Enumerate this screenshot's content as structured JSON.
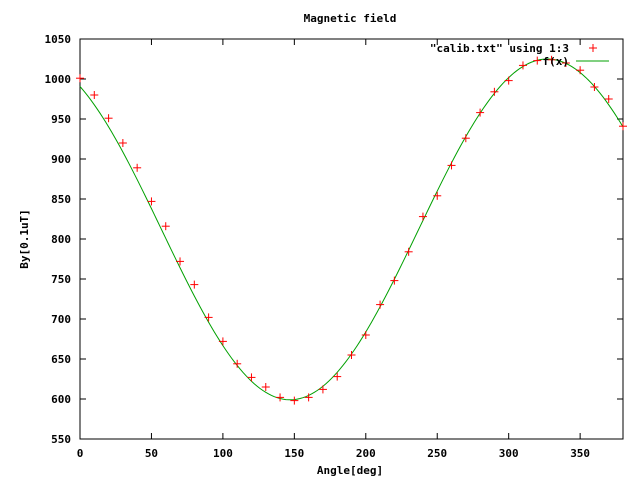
{
  "chart_data": {
    "type": "scatter",
    "title": "Magnetic field",
    "xlabel": "Angle[deg]",
    "ylabel": "By[0.1uT]",
    "xlim": [
      0,
      380
    ],
    "ylim": [
      550,
      1050
    ],
    "xticks": [
      0,
      50,
      100,
      150,
      200,
      250,
      300,
      350
    ],
    "yticks": [
      550,
      600,
      650,
      700,
      750,
      800,
      850,
      900,
      950,
      1000,
      1050
    ],
    "grid": false,
    "legend_position": "top-right",
    "series": [
      {
        "name": "\"calib.txt\" using 1:3",
        "kind": "points",
        "marker": "plus",
        "color": "#ff0000",
        "x": [
          0,
          10,
          20,
          30,
          40,
          50,
          60,
          70,
          80,
          90,
          100,
          110,
          120,
          130,
          140,
          150,
          160,
          170,
          180,
          190,
          200,
          210,
          220,
          230,
          240,
          250,
          260,
          270,
          280,
          290,
          300,
          310,
          320,
          330,
          340,
          350,
          360,
          370,
          380
        ],
        "y": [
          1001,
          980,
          951,
          920,
          889,
          847,
          816,
          772,
          743,
          702,
          672,
          644,
          627,
          615,
          602,
          598,
          602,
          612,
          628,
          655,
          680,
          718,
          748,
          784,
          828,
          854,
          892,
          926,
          958,
          984,
          998,
          1017,
          1023,
          1024,
          1020,
          1011,
          990,
          975,
          941
        ]
      },
      {
        "name": "f(x)",
        "kind": "line",
        "color": "#00a000",
        "function": {
          "form": "offset + amplitude * cos((x - phase) deg)",
          "offset": 812,
          "amplitude": 213,
          "phase": 327
        }
      }
    ]
  }
}
